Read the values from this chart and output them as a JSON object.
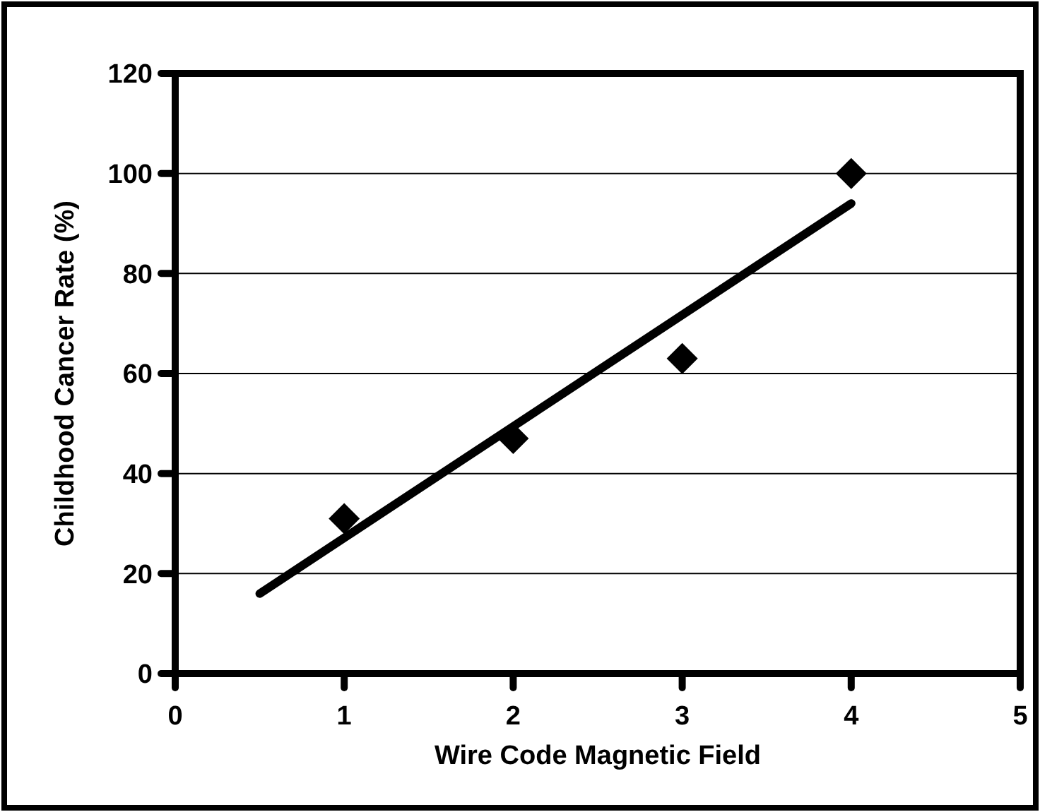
{
  "chart_data": {
    "type": "scatter",
    "xlabel": "Wire Code Magnetic Field",
    "ylabel": "Childhood Cancer Rate (%)",
    "x": [
      1,
      2,
      3,
      4
    ],
    "series": [
      {
        "color": "#000000",
        "marker": "diamond",
        "values": [
          31,
          47,
          63,
          100
        ]
      },
      {
        "type": "line",
        "color": "#000000",
        "marker": "none",
        "line_style": "solid",
        "x": [
          0.5,
          4
        ],
        "values": [
          16,
          94
        ]
      }
    ],
    "xlim": [
      0,
      5
    ],
    "xticks": [
      0,
      1,
      2,
      3,
      4,
      5
    ],
    "ylim": [
      0,
      120
    ],
    "yticks": [
      0,
      20,
      40,
      60,
      80,
      100,
      120
    ],
    "grid": "y"
  }
}
